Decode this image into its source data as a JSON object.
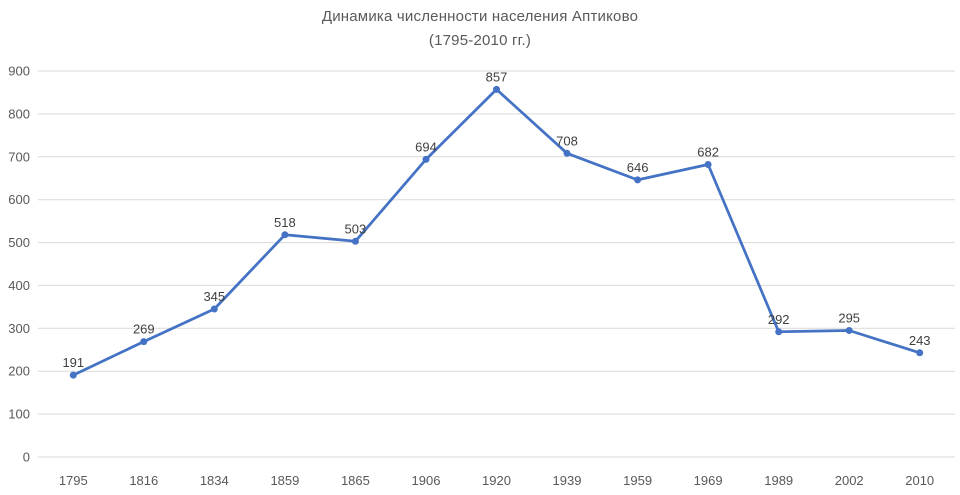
{
  "title": {
    "line1": "Динамика численности населения Аптиково",
    "line2": "(1795-2010 гг.)"
  },
  "chart_data": {
    "type": "line",
    "title": "Динамика численности населения Аптиково (1795-2010 гг.)",
    "categories": [
      "1795",
      "1816",
      "1834",
      "1859",
      "1865",
      "1906",
      "1920",
      "1939",
      "1959",
      "1969",
      "1989",
      "2002",
      "2010"
    ],
    "values": [
      191,
      269,
      345,
      518,
      503,
      694,
      857,
      708,
      646,
      682,
      292,
      295,
      243
    ],
    "xlabel": "",
    "ylabel": "",
    "ylim": [
      0,
      900
    ],
    "y_ticks": [
      0,
      100,
      200,
      300,
      400,
      500,
      600,
      700,
      800,
      900
    ],
    "grid": true,
    "legend": false,
    "data_labels": true,
    "marker": "circle",
    "colors": {
      "line": "#4472C4",
      "marker": "#4472C4",
      "gridline": "#D9D9D9",
      "title": "#595959",
      "axis_labels": "#595959",
      "data_labels": "#404040",
      "background": "#FFFFFF"
    }
  }
}
